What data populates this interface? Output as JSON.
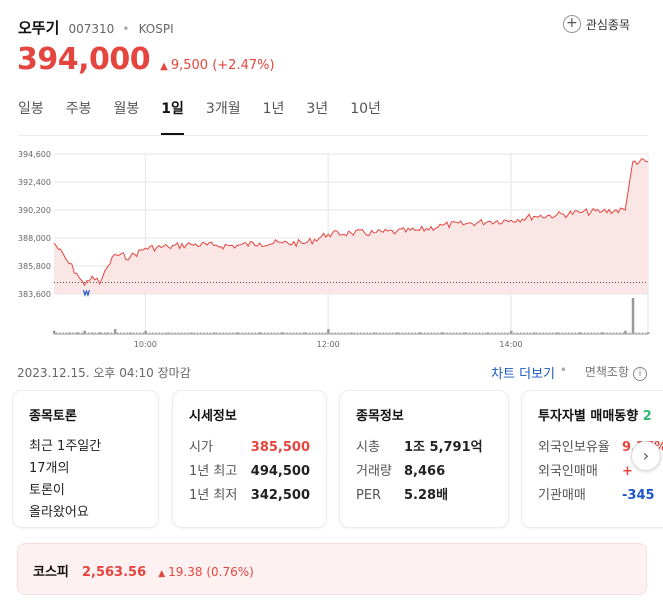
{
  "header": {
    "name": "오뚜기",
    "code": "007310",
    "separator": "•",
    "market": "KOSPI",
    "watch_label": "관심종목",
    "watch_icon": "+"
  },
  "price": {
    "current": "394,000",
    "change_icon": "▲",
    "change": "9,500",
    "change_pct": "(+2.47%)"
  },
  "tabs": [
    "일봉",
    "주봉",
    "월봉",
    "1일",
    "3개월",
    "1년",
    "3년",
    "10년"
  ],
  "active_tab": "1일",
  "chart_data": {
    "type": "area",
    "ylim": [
      383600,
      394600
    ],
    "yticks": [
      "394,600",
      "392,400",
      "390,200",
      "388,000",
      "385,800",
      "383,600"
    ],
    "xticks": [
      "10:00",
      "12:00",
      "14:00"
    ],
    "reference_line": 384500,
    "x_range": [
      "09:00",
      "15:30"
    ],
    "series": [
      {
        "x": [
          "09:00",
          "09:10",
          "09:15",
          "09:20",
          "09:25",
          "09:30",
          "09:35",
          "09:40",
          "09:50",
          "10:00",
          "10:15",
          "10:30",
          "10:45",
          "11:00",
          "11:15",
          "11:30",
          "11:45",
          "12:00",
          "12:15",
          "12:30",
          "12:45",
          "13:00",
          "13:15",
          "13:30",
          "13:45",
          "14:00",
          "14:15",
          "14:30",
          "14:45",
          "15:00",
          "15:15",
          "15:20",
          "15:30"
        ],
        "values": [
          387600,
          386000,
          385200,
          384300,
          385000,
          384400,
          385700,
          386700,
          386500,
          387200,
          387300,
          387500,
          387400,
          387400,
          387600,
          387600,
          387600,
          388300,
          388400,
          388400,
          388500,
          388600,
          389000,
          389100,
          389300,
          389400,
          389700,
          389800,
          390000,
          390100,
          390200,
          394000,
          394000
        ]
      }
    ],
    "volume": {
      "values": [
        2,
        1,
        1,
        2,
        1,
        1,
        1,
        3,
        1,
        2,
        1,
        1,
        1,
        1,
        1,
        1,
        1,
        3,
        1,
        1,
        1,
        1,
        1,
        1,
        1,
        2,
        1,
        1,
        1,
        1,
        2,
        22,
        1
      ]
    },
    "colors": {
      "line": "#e5453f",
      "fill": "#fbe3e3",
      "low_marker": "#1e57c9",
      "volume": "#999999",
      "grid": "#e6e6e6"
    },
    "grid": true
  },
  "info": {
    "datetime": "2023.12.15. 오후 04:10 장마감",
    "chart_more": "차트 더보기",
    "dot": "•",
    "disclaimer": "면책조항",
    "disclaimer_icon": "i"
  },
  "cards": {
    "discussion": {
      "title": "종목토론",
      "lines": [
        "최근 1주일간",
        "17개의",
        "토론이",
        "올라왔어요"
      ]
    },
    "quote": {
      "title": "시세정보",
      "rows": [
        {
          "label": "시가",
          "value": "385,500"
        },
        {
          "label": "1년 최고",
          "value": "494,500"
        },
        {
          "label": "1년 최저",
          "value": "342,500"
        }
      ]
    },
    "stock_info": {
      "title": "종목정보",
      "rows": [
        {
          "label": "시총",
          "value": "1조 5,791억"
        },
        {
          "label": "거래량",
          "value": "8,466"
        },
        {
          "label": "PER",
          "value": "5.28배"
        }
      ]
    },
    "investor": {
      "title": "투자자별 매매동향",
      "badge": "2",
      "rows": [
        {
          "label": "외국인보유율",
          "value": "9.37%"
        },
        {
          "label": "외국인매매",
          "value": "+"
        },
        {
          "label": "기관매매",
          "value": "-345"
        }
      ]
    },
    "next_icon": "›"
  },
  "index": {
    "name": "코스피",
    "value": "2,563.56",
    "change_icon": "▲",
    "change": "19.38 (0.76%)"
  }
}
